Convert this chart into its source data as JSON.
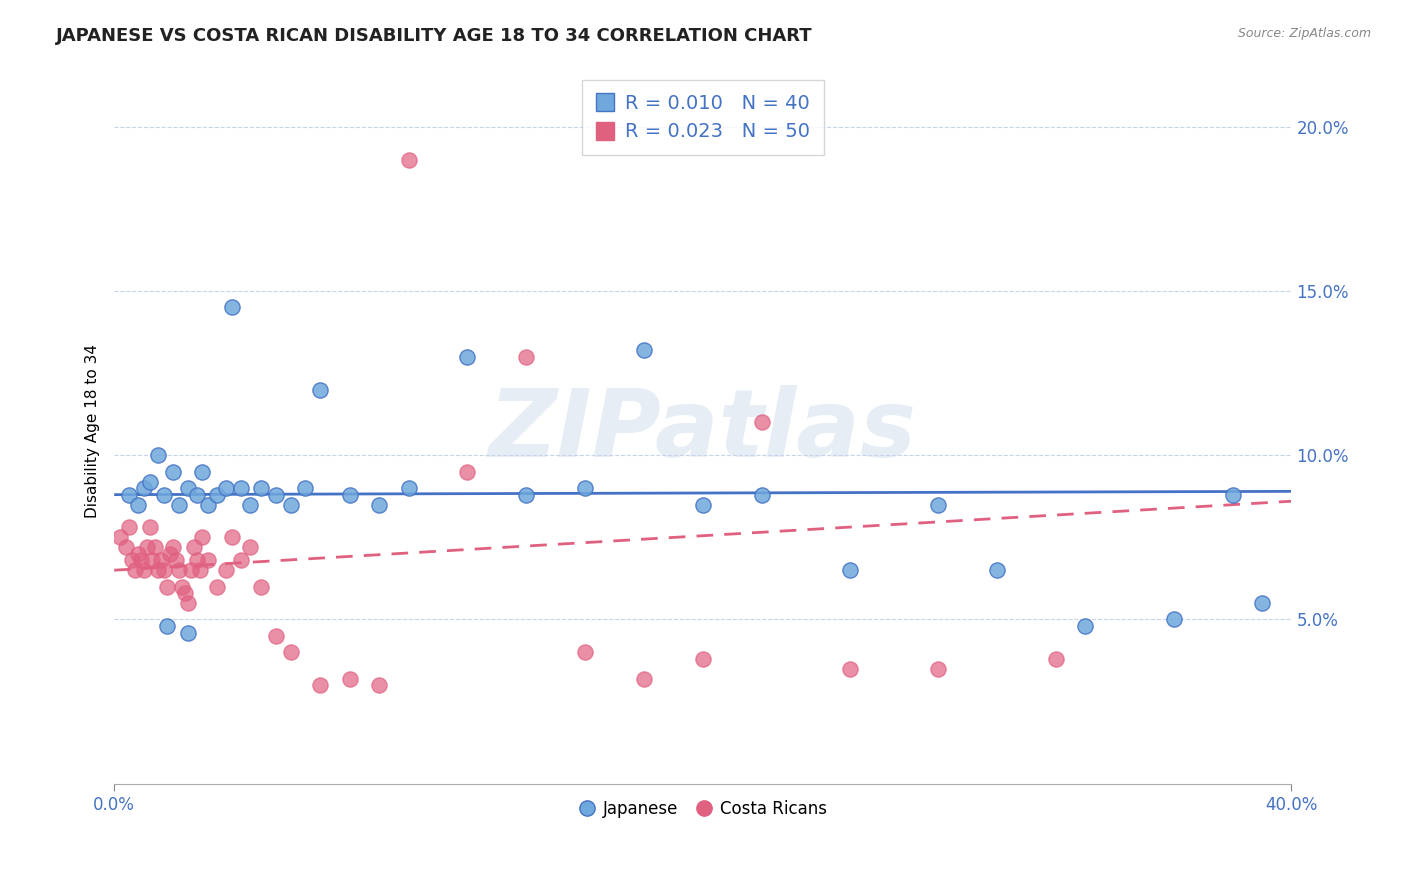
{
  "title": "JAPANESE VS COSTA RICAN DISABILITY AGE 18 TO 34 CORRELATION CHART",
  "source": "Source: ZipAtlas.com",
  "ylabel": "Disability Age 18 to 34",
  "xlim": [
    0.0,
    0.4
  ],
  "ylim": [
    0.0,
    0.215
  ],
  "yticks": [
    0.05,
    0.1,
    0.15,
    0.2
  ],
  "ytick_labels": [
    "5.0%",
    "10.0%",
    "15.0%",
    "20.0%"
  ],
  "xtick_left_val": 0.0,
  "xtick_right_val": 0.4,
  "xtick_left_label": "0.0%",
  "xtick_right_label": "40.0%",
  "legend_r1": "R = 0.010",
  "legend_n1": "N = 40",
  "legend_r2": "R = 0.023",
  "legend_n2": "N = 50",
  "japanese_color": "#6fa8dc",
  "costarican_color": "#e06080",
  "trend_japanese_color": "#4472c4",
  "trend_costarican_color": "#e06080",
  "watermark": "ZIPatlas",
  "japanese_x": [
    0.005,
    0.008,
    0.01,
    0.012,
    0.015,
    0.017,
    0.02,
    0.022,
    0.025,
    0.028,
    0.03,
    0.032,
    0.035,
    0.038,
    0.04,
    0.043,
    0.046,
    0.05,
    0.055,
    0.06,
    0.065,
    0.07,
    0.08,
    0.09,
    0.1,
    0.12,
    0.14,
    0.16,
    0.18,
    0.2,
    0.22,
    0.25,
    0.28,
    0.3,
    0.33,
    0.36,
    0.38,
    0.39,
    0.025,
    0.018
  ],
  "japanese_y": [
    0.088,
    0.085,
    0.09,
    0.092,
    0.1,
    0.088,
    0.095,
    0.085,
    0.09,
    0.088,
    0.095,
    0.085,
    0.088,
    0.09,
    0.145,
    0.09,
    0.085,
    0.09,
    0.088,
    0.085,
    0.09,
    0.12,
    0.088,
    0.085,
    0.09,
    0.13,
    0.088,
    0.09,
    0.132,
    0.085,
    0.088,
    0.065,
    0.085,
    0.065,
    0.048,
    0.05,
    0.088,
    0.055,
    0.046,
    0.048
  ],
  "costarican_x": [
    0.002,
    0.004,
    0.005,
    0.006,
    0.007,
    0.008,
    0.009,
    0.01,
    0.011,
    0.012,
    0.013,
    0.014,
    0.015,
    0.016,
    0.017,
    0.018,
    0.019,
    0.02,
    0.021,
    0.022,
    0.023,
    0.024,
    0.025,
    0.026,
    0.027,
    0.028,
    0.029,
    0.03,
    0.032,
    0.035,
    0.038,
    0.04,
    0.043,
    0.046,
    0.05,
    0.055,
    0.06,
    0.07,
    0.08,
    0.09,
    0.1,
    0.12,
    0.14,
    0.16,
    0.18,
    0.2,
    0.22,
    0.25,
    0.28,
    0.32
  ],
  "costarican_y": [
    0.075,
    0.072,
    0.078,
    0.068,
    0.065,
    0.07,
    0.068,
    0.065,
    0.072,
    0.078,
    0.068,
    0.072,
    0.065,
    0.068,
    0.065,
    0.06,
    0.07,
    0.072,
    0.068,
    0.065,
    0.06,
    0.058,
    0.055,
    0.065,
    0.072,
    0.068,
    0.065,
    0.075,
    0.068,
    0.06,
    0.065,
    0.075,
    0.068,
    0.072,
    0.06,
    0.045,
    0.04,
    0.03,
    0.032,
    0.03,
    0.19,
    0.095,
    0.13,
    0.04,
    0.032,
    0.038,
    0.11,
    0.035,
    0.035,
    0.038
  ],
  "jp_trend_x": [
    0.0,
    0.4
  ],
  "jp_trend_y": [
    0.088,
    0.089
  ],
  "cr_trend_x": [
    0.0,
    0.4
  ],
  "cr_trend_y": [
    0.065,
    0.086
  ]
}
